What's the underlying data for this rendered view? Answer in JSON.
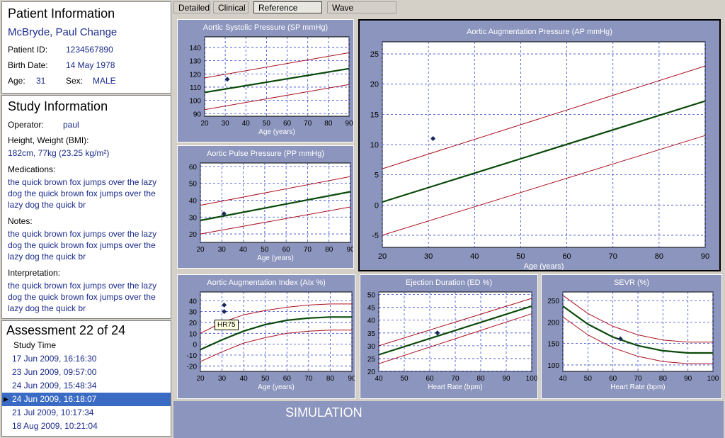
{
  "patient": {
    "heading": "Patient Information",
    "name": "McBryde, Paul Change",
    "id_label": "Patient ID:",
    "id": "1234567890",
    "birth_label": "Birth Date:",
    "birth": "14 May 1978",
    "age_label": "Age:",
    "age": "31",
    "sex_label": "Sex:",
    "sex": "MALE"
  },
  "study": {
    "heading": "Study Information",
    "operator_label": "Operator:",
    "operator": "paul",
    "hw_label": "Height, Weight (BMI):",
    "hw": "182cm, 77kg (23.25 kg/m²)",
    "med_label": "Medications:",
    "med": "the quick brown fox jumps over the lazy dog the quick brown fox jumps over the lazy dog the quick br",
    "notes_label": "Notes:",
    "notes": "the quick brown fox jumps over the lazy dog the quick brown fox jumps over the lazy dog the quick br",
    "interp_label": "Interpretation:",
    "interp": "the quick brown fox jumps over the lazy dog the quick brown fox jumps over the lazy dog the quick br"
  },
  "assessment": {
    "heading": "Assessment 22 of 24",
    "col": "Study Time",
    "rows": [
      "17 Jun 2009, 16:16:30",
      "23 Jun 2009, 09:57:00",
      "24 Jun 2009, 15:48:34",
      "24 Jun 2009, 16:18:07",
      "21 Jul 2009, 10:17:34",
      "18 Aug 2009, 10:21:04"
    ],
    "selected": 3,
    "marker": "▶"
  },
  "tabs": [
    "Detailed",
    "Clinical",
    "Reference Range",
    "Wave Reflection"
  ],
  "active_tab": 2,
  "footer": "SIMULATION",
  "tooltip": "HR75",
  "colors": {
    "panel": "#8b95bd",
    "plot": "#ffffff",
    "grid": "#3344cc",
    "trend": "#0a4a0a",
    "band": "#aa1020",
    "point": "#1a2a5a"
  },
  "chart_data": [
    {
      "type": "line",
      "title": "Aortic Systolic Pressure (SP mmHg)",
      "xlabel": "Age (years)",
      "ylabel": "",
      "xlim": [
        20,
        90
      ],
      "ylim": [
        88,
        148
      ],
      "xticks": [
        20,
        30,
        40,
        50,
        60,
        70,
        80,
        90
      ],
      "yticks": [
        90,
        100,
        110,
        120,
        130,
        140
      ],
      "series": [
        {
          "x": [
            20,
            90
          ],
          "y": [
            106,
            124
          ],
          "role": "trend"
        },
        {
          "x": [
            20,
            90
          ],
          "y": [
            117,
            136
          ],
          "role": "band"
        },
        {
          "x": [
            20,
            90
          ],
          "y": [
            93,
            112
          ],
          "role": "band"
        }
      ],
      "points": [
        {
          "x": 31,
          "y": 116
        }
      ]
    },
    {
      "type": "line",
      "title": "Aortic Pulse Pressure (PP mmHg)",
      "xlabel": "Age (years)",
      "ylabel": "",
      "xlim": [
        20,
        90
      ],
      "ylim": [
        15,
        62
      ],
      "xticks": [
        20,
        30,
        40,
        50,
        60,
        70,
        80,
        90
      ],
      "yticks": [
        20,
        30,
        40,
        50,
        60
      ],
      "series": [
        {
          "x": [
            20,
            90
          ],
          "y": [
            28,
            45
          ],
          "role": "trend"
        },
        {
          "x": [
            20,
            90
          ],
          "y": [
            37,
            54
          ],
          "role": "band"
        },
        {
          "x": [
            20,
            90
          ],
          "y": [
            20,
            36
          ],
          "role": "band"
        }
      ],
      "points": [
        {
          "x": 31,
          "y": 32
        }
      ]
    },
    {
      "type": "line",
      "title": "Aortic Augmentation Pressure (AP mmHg)",
      "xlabel": "Age (years)",
      "ylabel": "",
      "xlim": [
        20,
        90
      ],
      "ylim": [
        -7,
        27
      ],
      "xticks": [
        20,
        30,
        40,
        50,
        60,
        70,
        80,
        90
      ],
      "yticks": [
        -5,
        0,
        5,
        10,
        15,
        20,
        25
      ],
      "series": [
        {
          "x": [
            20,
            90
          ],
          "y": [
            0.5,
            17.2
          ],
          "role": "trend"
        },
        {
          "x": [
            20,
            90
          ],
          "y": [
            6,
            23
          ],
          "role": "band"
        },
        {
          "x": [
            20,
            90
          ],
          "y": [
            -5,
            11.5
          ],
          "role": "band"
        }
      ],
      "points": [
        {
          "x": 31,
          "y": 11
        }
      ]
    },
    {
      "type": "line",
      "title": "Aortic Augmentation Index (AIx %)",
      "xlabel": "Age (years)",
      "ylabel": "",
      "xlim": [
        20,
        90
      ],
      "ylim": [
        -25,
        48
      ],
      "xticks": [
        20,
        30,
        40,
        50,
        60,
        70,
        80,
        90
      ],
      "yticks": [
        -20,
        -10,
        0,
        10,
        20,
        30,
        40
      ],
      "series": [
        {
          "x": [
            20,
            30,
            40,
            50,
            60,
            70,
            80,
            90
          ],
          "y": [
            -5,
            4,
            12,
            18,
            22,
            24,
            25,
            25
          ],
          "role": "trend"
        },
        {
          "x": [
            20,
            30,
            40,
            50,
            60,
            70,
            80,
            90
          ],
          "y": [
            10,
            20,
            27,
            31,
            34,
            36,
            37,
            37
          ],
          "role": "band"
        },
        {
          "x": [
            20,
            30,
            40,
            50,
            60,
            70,
            80,
            90
          ],
          "y": [
            -16,
            -7,
            1,
            6,
            10,
            12,
            13,
            13
          ],
          "role": "band"
        }
      ],
      "points": [
        {
          "x": 31,
          "y": 36
        },
        {
          "x": 31,
          "y": 30
        }
      ]
    },
    {
      "type": "line",
      "title": "Ejection Duration (ED %)",
      "xlabel": "Heart Rate (bpm)",
      "ylabel": "",
      "xlim": [
        40,
        100
      ],
      "ylim": [
        20,
        51
      ],
      "xticks": [
        40,
        50,
        60,
        70,
        80,
        90,
        100
      ],
      "yticks": [
        20,
        25,
        30,
        35,
        40,
        45,
        50
      ],
      "series": [
        {
          "x": [
            40,
            100
          ],
          "y": [
            26.5,
            45.5
          ],
          "role": "trend"
        },
        {
          "x": [
            40,
            100
          ],
          "y": [
            30,
            48.5
          ],
          "role": "band"
        },
        {
          "x": [
            40,
            100
          ],
          "y": [
            23,
            42.5
          ],
          "role": "band"
        }
      ],
      "points": [
        {
          "x": 63,
          "y": 35
        }
      ]
    },
    {
      "type": "line",
      "title": "SEVR (%)",
      "xlabel": "Heart Rate (bpm)",
      "ylabel": "",
      "xlim": [
        40,
        100
      ],
      "ylim": [
        85,
        270
      ],
      "xticks": [
        40,
        50,
        60,
        70,
        80,
        90,
        100
      ],
      "yticks": [
        100,
        150,
        200,
        250
      ],
      "series": [
        {
          "x": [
            40,
            50,
            60,
            70,
            80,
            90,
            100
          ],
          "y": [
            237,
            195,
            165,
            145,
            133,
            128,
            128
          ],
          "role": "trend"
        },
        {
          "x": [
            40,
            50,
            60,
            70,
            80,
            90,
            100
          ],
          "y": [
            262,
            220,
            190,
            170,
            158,
            153,
            153
          ],
          "role": "band"
        },
        {
          "x": [
            40,
            50,
            60,
            70,
            80,
            90,
            100
          ],
          "y": [
            212,
            170,
            140,
            120,
            108,
            103,
            103
          ],
          "role": "band"
        }
      ],
      "points": [
        {
          "x": 63,
          "y": 161
        }
      ]
    }
  ]
}
